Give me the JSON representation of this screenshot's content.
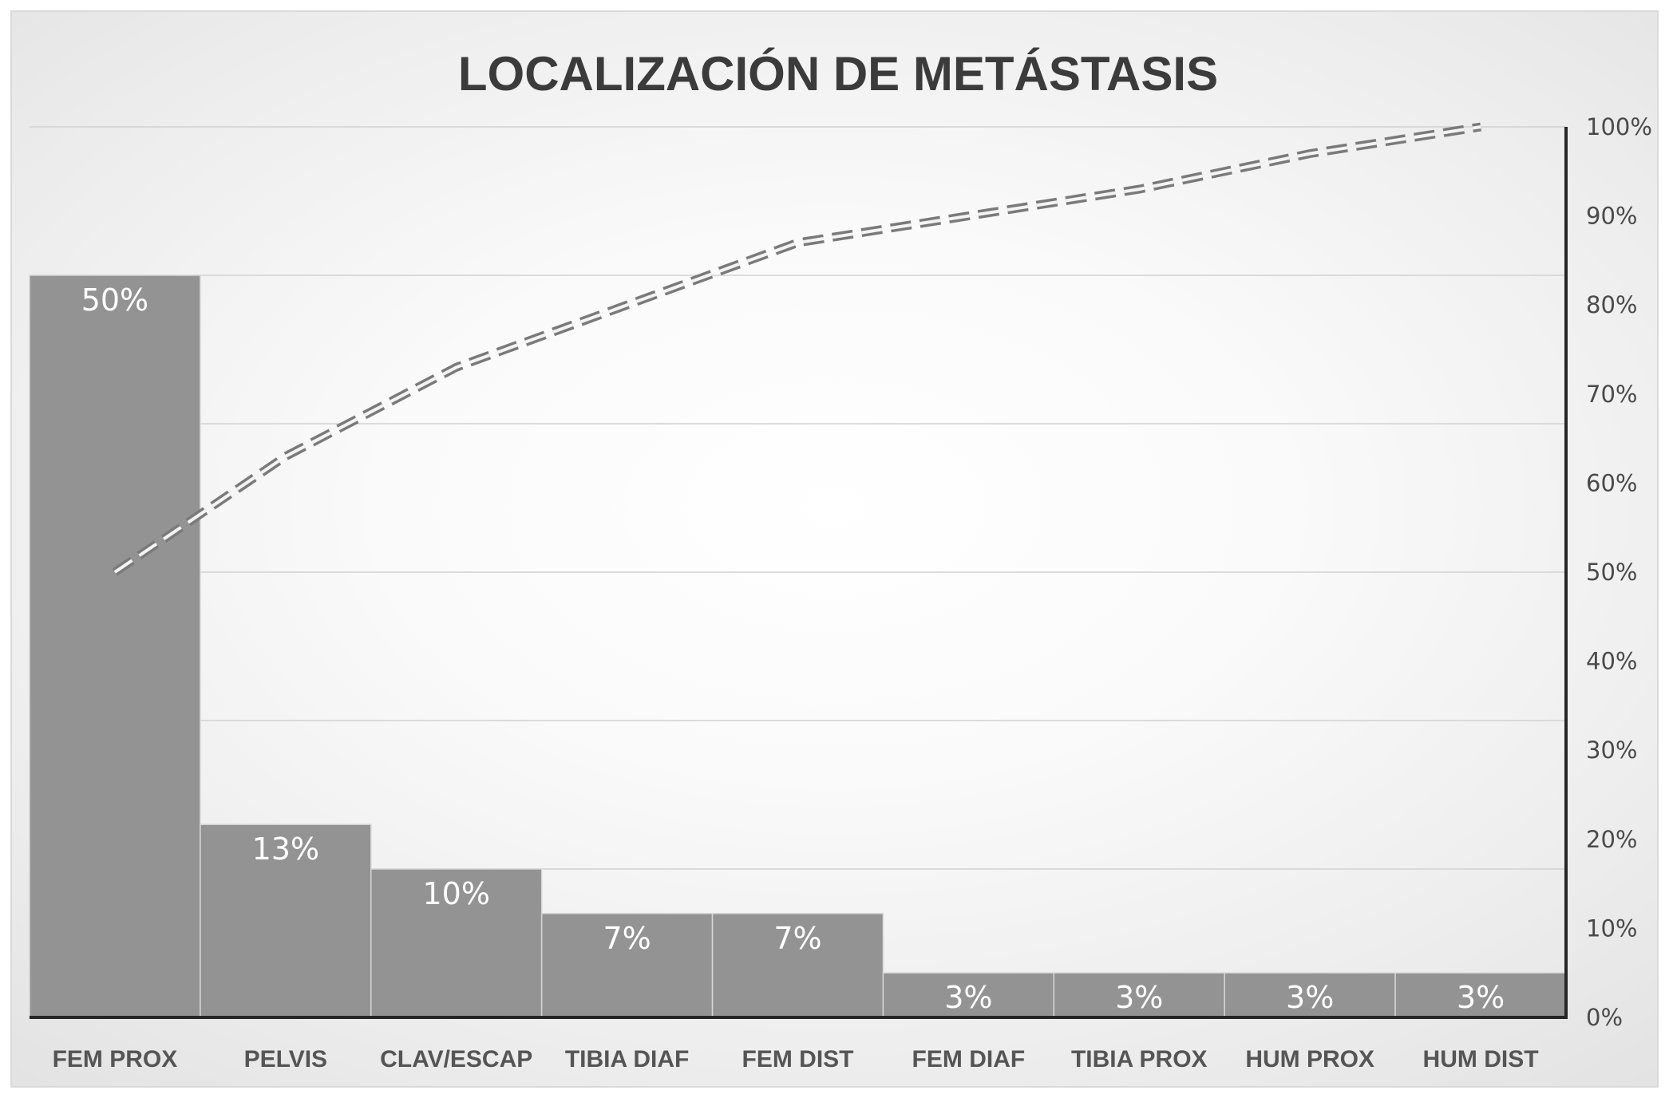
{
  "chart_data": {
    "type": "bar",
    "title": "LOCALIZACIÓN DE METÁSTASIS",
    "categories": [
      "FEM PROX",
      "PELVIS",
      "CLAV/ESCAP",
      "TIBIA DIAF",
      "FEM DIST",
      "FEM DIAF",
      "TIBIA PROX",
      "HUM PROX",
      "HUM DIST"
    ],
    "values": [
      50,
      13,
      10,
      7,
      7,
      3,
      3,
      3,
      3
    ],
    "data_labels": [
      "50%",
      "13%",
      "10%",
      "7%",
      "7%",
      "3%",
      "3%",
      "3%",
      "3%"
    ],
    "cumulative": {
      "type": "line",
      "style": "double-dashed",
      "values": [
        50,
        63,
        73,
        80,
        87,
        90,
        93,
        97,
        100
      ]
    },
    "left_axis": {
      "visible": false,
      "ylim": [
        0,
        60
      ]
    },
    "right_axis": {
      "ylim": [
        0,
        100
      ],
      "tick_labels": [
        "0%",
        "10%",
        "20%",
        "30%",
        "40%",
        "50%",
        "60%",
        "70%",
        "80%",
        "90%",
        "100%"
      ]
    },
    "grid": true,
    "legend": "none",
    "colors": {
      "bar": "#939393",
      "bar_border": "#d6d6d6",
      "line": "#7a7a7a",
      "axis": "#262626",
      "grid": "#d2d2d2"
    }
  }
}
